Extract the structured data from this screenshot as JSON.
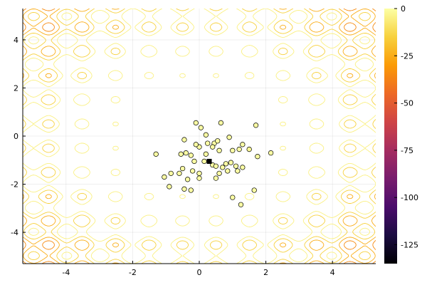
{
  "chart_data": {
    "type": "scatter",
    "subtype": "contour-with-scatter",
    "title": "",
    "xlabel": "",
    "ylabel": "",
    "xlim": [
      -5.3,
      5.3
    ],
    "ylim": [
      -5.3,
      5.3
    ],
    "x_ticks": [
      -4,
      -2,
      0,
      2,
      4
    ],
    "x_tick_labels": [
      "-4",
      "-2",
      "0",
      "2",
      "4"
    ],
    "y_ticks": [
      -4,
      -2,
      0,
      2,
      4
    ],
    "y_tick_labels": [
      "-4",
      "-2",
      "0",
      "2",
      "4"
    ],
    "grid": true,
    "legend": "none",
    "colormap": "inferno",
    "colorbar": {
      "range": [
        -135,
        0
      ],
      "ticks": [
        0,
        -25,
        -50,
        -75,
        -100,
        -125
      ],
      "tick_labels": [
        "0",
        "-25",
        "-50",
        "-75",
        "-100",
        "-125"
      ],
      "colors": [
        "#000004",
        "#1b0c41",
        "#4a0c6b",
        "#781c6d",
        "#a52c60",
        "#cf4446",
        "#ed6925",
        "#fb9b06",
        "#f7d13d",
        "#fcffa4"
      ]
    },
    "contour_function": "x^2 + y^2 - 10*(cos(2*pi*x) + cos(2*pi*y)) - 20, shown negated",
    "contour_levels": [
      -125,
      -115,
      -105,
      -95,
      -85,
      -75,
      -65,
      -55,
      -45,
      -35,
      -25,
      -15,
      -5
    ],
    "best_point": {
      "x": 0.3,
      "y": -1.05,
      "marker": "square",
      "color": "#000000"
    },
    "points": [
      {
        "x": -0.1,
        "y": 0.55
      },
      {
        "x": 0.05,
        "y": 0.35
      },
      {
        "x": 0.2,
        "y": 0.05
      },
      {
        "x": 0.25,
        "y": -0.3
      },
      {
        "x": 0.45,
        "y": -0.3
      },
      {
        "x": 0.55,
        "y": -0.2
      },
      {
        "x": 0.65,
        "y": 0.55
      },
      {
        "x": 0.9,
        "y": -0.05
      },
      {
        "x": 1.7,
        "y": 0.45
      },
      {
        "x": 1.3,
        "y": -0.35
      },
      {
        "x": 1.5,
        "y": -0.55
      },
      {
        "x": 1.75,
        "y": -0.85
      },
      {
        "x": 2.15,
        "y": -0.7
      },
      {
        "x": 1.2,
        "y": -0.55
      },
      {
        "x": 1.0,
        "y": -0.6
      },
      {
        "x": 0.6,
        "y": -0.6
      },
      {
        "x": 0.4,
        "y": -0.45
      },
      {
        "x": 0.0,
        "y": -0.45
      },
      {
        "x": -0.1,
        "y": -0.35
      },
      {
        "x": -0.45,
        "y": -0.15
      },
      {
        "x": -0.4,
        "y": -0.7
      },
      {
        "x": -0.55,
        "y": -0.75
      },
      {
        "x": -0.25,
        "y": -0.8
      },
      {
        "x": 0.2,
        "y": -0.75
      },
      {
        "x": -1.3,
        "y": -0.75
      },
      {
        "x": -0.15,
        "y": -1.05
      },
      {
        "x": 0.15,
        "y": -1.05
      },
      {
        "x": 0.4,
        "y": -1.2
      },
      {
        "x": 0.7,
        "y": -1.3
      },
      {
        "x": 0.8,
        "y": -1.15
      },
      {
        "x": 0.95,
        "y": -1.1
      },
      {
        "x": 1.1,
        "y": -1.25
      },
      {
        "x": 1.3,
        "y": -1.3
      },
      {
        "x": 1.15,
        "y": -1.45
      },
      {
        "x": 0.85,
        "y": -1.45
      },
      {
        "x": 0.6,
        "y": -1.55
      },
      {
        "x": 0.5,
        "y": -1.75
      },
      {
        "x": 0.0,
        "y": -1.55
      },
      {
        "x": -0.2,
        "y": -1.45
      },
      {
        "x": -0.5,
        "y": -1.35
      },
      {
        "x": -0.6,
        "y": -1.55
      },
      {
        "x": -0.85,
        "y": -1.55
      },
      {
        "x": -0.35,
        "y": -1.8
      },
      {
        "x": 0.0,
        "y": -1.75
      },
      {
        "x": -1.05,
        "y": -1.7
      },
      {
        "x": -0.9,
        "y": -2.1
      },
      {
        "x": -0.45,
        "y": -2.2
      },
      {
        "x": -0.25,
        "y": -2.25
      },
      {
        "x": 1.0,
        "y": -2.55
      },
      {
        "x": 1.25,
        "y": -2.85
      },
      {
        "x": 1.65,
        "y": -2.25
      },
      {
        "x": 0.5,
        "y": -1.25
      }
    ]
  }
}
